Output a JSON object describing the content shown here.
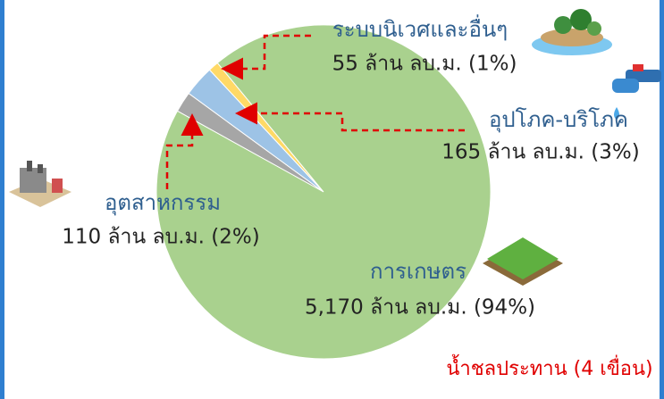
{
  "chart_data": {
    "type": "pie",
    "categories": [
      "อุตสาหกรรม",
      "อุปโภค-บริโภค",
      "ระบบนิเวศและอื่นๆ",
      "การเกษตร"
    ],
    "values": [
      110,
      165,
      55,
      5170
    ],
    "value_labels": [
      "110 ล้าน ลบ.ม. (2%)",
      "165 ล้าน ลบ.ม. (3%)",
      "55 ล้าน ลบ.ม. (1%)",
      "5,170 ล้าน ลบ.ม. (94%)"
    ],
    "colors": [
      "#a6a6a6",
      "#9dc3e6",
      "#ffd966",
      "#a9d18e"
    ],
    "note": "น้ำชลประทาน (4 เขื่อน)"
  }
}
